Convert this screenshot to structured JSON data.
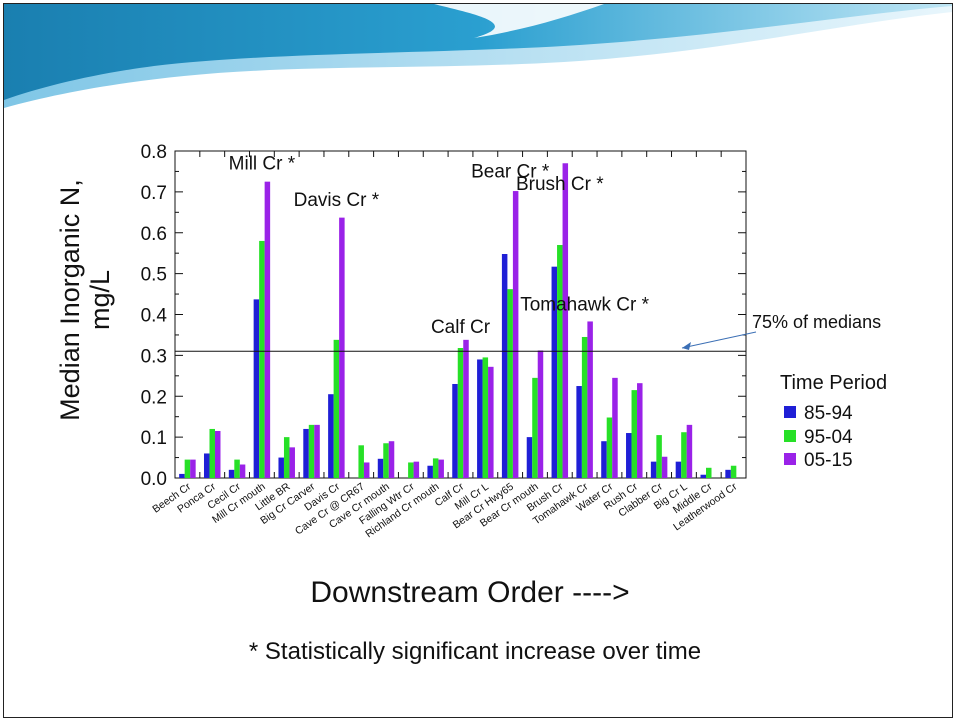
{
  "chart_data": {
    "type": "bar",
    "ylabel_line1": "Median Inorganic N,",
    "ylabel_line2": "mg/L",
    "xlabel": "Downstream Order  ---->",
    "ylim": [
      0.0,
      0.8
    ],
    "yticks": [
      "0.0",
      "0.1",
      "0.2",
      "0.3",
      "0.4",
      "0.5",
      "0.6",
      "0.7",
      "0.8"
    ],
    "categories": [
      "Beech Cr",
      "Ponca Cr",
      "Cecil Cr",
      "Mill Cr mouth",
      "Little BR",
      "Big Cr Carver",
      "Davis Cr",
      "Cave Cr @ CR67",
      "Cave Cr mouth",
      "Falling Wtr Cr",
      "Richland Cr mouth",
      "Calf Cr",
      "Mill Cr L",
      "Bear Cr Hwy65",
      "Bear Cr mouth",
      "Brush Cr",
      "Tomahawk Cr",
      "Water Cr",
      "Rush Cr",
      "Clabber Cr",
      "Big Cr L",
      "Middle Cr",
      "Leatherwood Cr"
    ],
    "legend_title": "Time Period",
    "series": [
      {
        "name": "85-94",
        "color": "#1f1fd6",
        "values": [
          0.01,
          0.06,
          0.02,
          0.437,
          0.05,
          0.12,
          0.205,
          null,
          0.047,
          null,
          0.03,
          0.23,
          0.29,
          0.548,
          0.1,
          0.517,
          0.225,
          0.09,
          0.11,
          0.04,
          0.04,
          0.008,
          0.02
        ]
      },
      {
        "name": "95-04",
        "color": "#27e027",
        "values": [
          0.045,
          0.12,
          0.045,
          0.58,
          0.1,
          0.13,
          0.338,
          0.08,
          0.085,
          0.038,
          0.048,
          0.318,
          0.295,
          0.462,
          0.245,
          0.57,
          0.345,
          0.148,
          0.215,
          0.105,
          0.112,
          0.025,
          0.03
        ]
      },
      {
        "name": "05-15",
        "color": "#9a22e8",
        "values": [
          0.045,
          0.115,
          0.033,
          0.725,
          0.075,
          0.13,
          0.637,
          0.038,
          0.09,
          0.04,
          0.045,
          0.338,
          0.272,
          0.702,
          0.312,
          0.77,
          0.383,
          0.245,
          0.232,
          0.052,
          0.13,
          null,
          null
        ]
      }
    ],
    "reference_line": {
      "value": 0.31,
      "label": "75% of medians"
    },
    "annotations": [
      {
        "text": "Mill Cr *",
        "category": "Mill Cr mouth",
        "y": 0.755
      },
      {
        "text": "Davis Cr *",
        "category": "Davis Cr",
        "y": 0.665
      },
      {
        "text": "Bear Cr *",
        "category": "Bear Cr Hwy65",
        "y": 0.735
      },
      {
        "text": "Brush Cr *",
        "category": "Brush Cr",
        "y": 0.705
      },
      {
        "text": "Calf Cr",
        "category": "Calf Cr",
        "y": 0.355
      },
      {
        "text": "Tomahawk Cr *",
        "category": "Tomahawk Cr",
        "y": 0.41
      }
    ],
    "grid": false,
    "legend_position": "right"
  },
  "footnote": "* Statistically significant increase over time"
}
